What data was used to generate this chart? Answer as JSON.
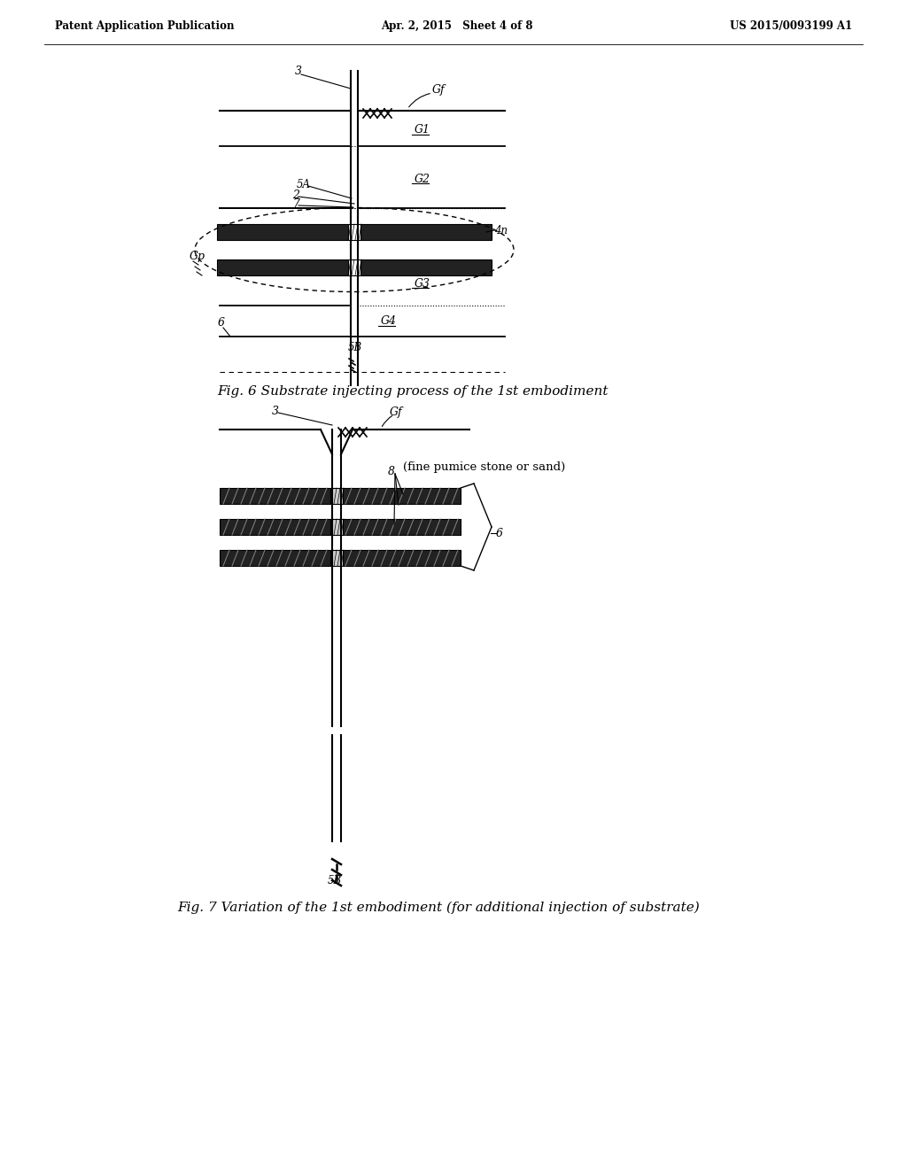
{
  "bg_color": "#ffffff",
  "header_left": "Patent Application Publication",
  "header_mid": "Apr. 2, 2015   Sheet 4 of 8",
  "header_right": "US 2015/0093199 A1",
  "fig6_caption": "Fig. 6 Substrate injecting process of the 1st embodiment",
  "fig7_caption": "Fig. 7 Variation of the 1st embodiment (for additional injection of substrate)",
  "line_color": "#000000",
  "dark_fill": "#222222",
  "hatch_fill": "#444444"
}
